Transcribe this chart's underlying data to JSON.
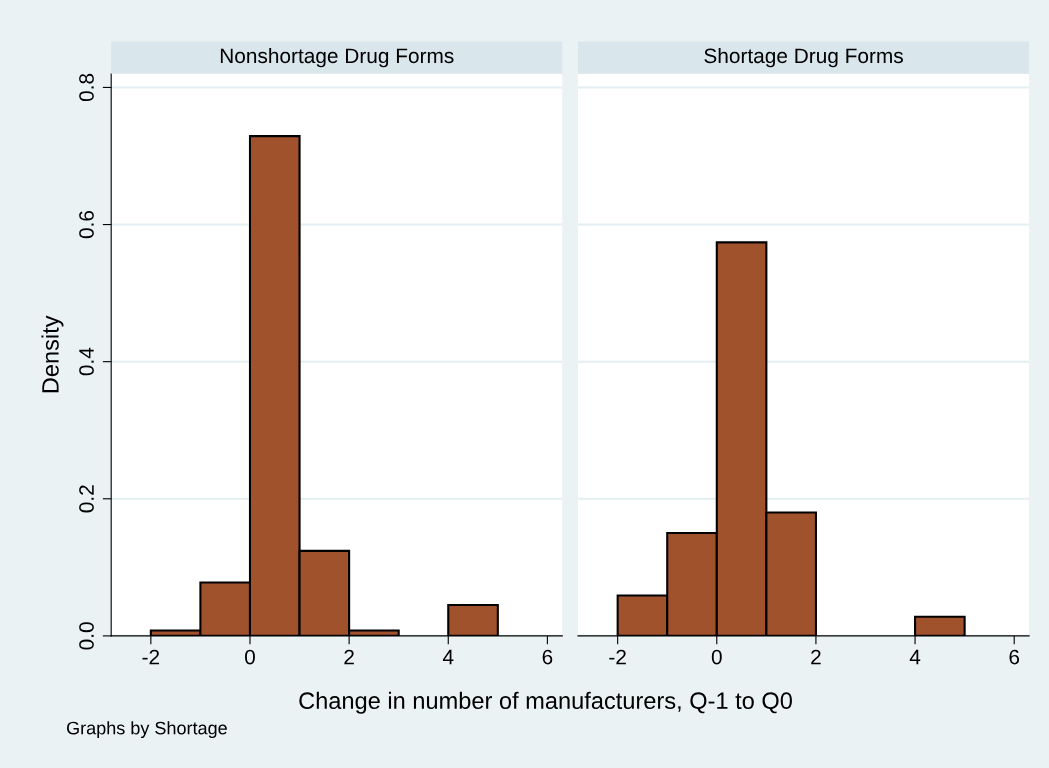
{
  "chart_data": [
    {
      "type": "histogram",
      "title": "Nonshortage Drug Forms",
      "xlabel": "Change in number of manufacturers, Q-1 to Q0",
      "ylabel": "Density",
      "annotations": [
        "Graphs by Shortage"
      ],
      "bins": [
        -2,
        -1,
        0,
        1,
        2,
        3,
        4,
        5
      ],
      "values": [
        0.008,
        0.078,
        0.729,
        0.124,
        0.008,
        0,
        0.045
      ],
      "color": "#a0522d",
      "xlim": [
        -2.8,
        6.3
      ],
      "xticks": [
        -2,
        0,
        2,
        4,
        6
      ],
      "ylim": [
        0,
        0.82
      ],
      "yticks": [
        {
          "value": 0,
          "label": "0.0"
        },
        0.2,
        0.4,
        0.6,
        0.8
      ],
      "grid": "y"
    },
    {
      "type": "histogram",
      "title": "Shortage Drug Forms",
      "bins": [
        -2,
        -1,
        0,
        1,
        2,
        3,
        4,
        5
      ],
      "values": [
        0.059,
        0.15,
        0.574,
        0.18,
        0,
        0,
        0.028
      ],
      "color": "#a0522d",
      "xlim": [
        -2.8,
        6.3
      ],
      "xticks": [
        -2,
        0,
        2,
        4,
        6
      ],
      "ylim": [
        0,
        0.82
      ],
      "grid": "y",
      "tick_labels": "x"
    }
  ]
}
